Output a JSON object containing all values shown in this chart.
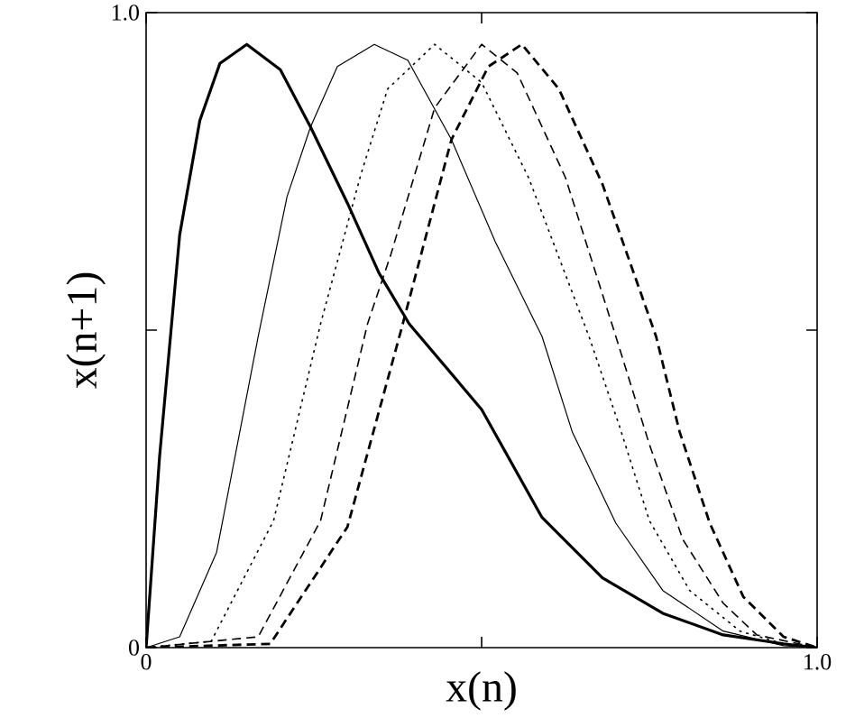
{
  "chart_data": {
    "type": "line",
    "xlabel": "x(n)",
    "ylabel": "x(n+1)",
    "xlim": [
      0,
      1
    ],
    "ylim": [
      0,
      1
    ],
    "xticks": [
      0,
      {
        "value": 0.5,
        "label": null
      },
      {
        "value": 1,
        "label": "1.0"
      }
    ],
    "yticks": [
      0,
      {
        "value": 0.5,
        "label": null
      },
      {
        "value": 1,
        "label": "1.0"
      }
    ],
    "grid": false,
    "marker": "none",
    "series": [
      {
        "color": "#000000",
        "line_style": "solid",
        "x": [
          0,
          0.02,
          0.05,
          0.08,
          0.11,
          0.15,
          0.2,
          0.245,
          0.3,
          0.347,
          0.392,
          0.5,
          0.59,
          0.68,
          0.77,
          0.86,
          0.95,
          1
        ],
        "values": [
          0,
          0.3,
          0.65,
          0.83,
          0.92,
          0.95,
          0.91,
          0.82,
          0.7,
          0.59,
          0.51,
          0.375,
          0.205,
          0.11,
          0.054,
          0.02,
          0.006,
          0
        ]
      },
      {
        "color": "#000000",
        "line_style": "solid",
        "x": [
          0,
          0.05,
          0.105,
          0.167,
          0.21,
          0.245,
          0.285,
          0.34,
          0.39,
          0.455,
          0.52,
          0.59,
          0.635,
          0.7,
          0.77,
          0.86,
          0.95,
          1
        ],
        "values": [
          0,
          0.017,
          0.15,
          0.49,
          0.71,
          0.82,
          0.915,
          0.95,
          0.925,
          0.8,
          0.64,
          0.49,
          0.34,
          0.196,
          0.09,
          0.026,
          0.003,
          0
        ]
      },
      {
        "color": "#000000",
        "line_style": "dotted",
        "x": [
          0,
          0.097,
          0.19,
          0.26,
          0.32,
          0.36,
          0.43,
          0.5,
          0.57,
          0.66,
          0.705,
          0.75,
          0.81,
          0.885,
          0.95,
          1
        ],
        "values": [
          0,
          0.01,
          0.2,
          0.51,
          0.745,
          0.88,
          0.95,
          0.89,
          0.74,
          0.49,
          0.35,
          0.2,
          0.09,
          0.026,
          0.006,
          0
        ]
      },
      {
        "color": "#000000",
        "line_style": "dashed",
        "x": [
          0,
          0.167,
          0.26,
          0.33,
          0.365,
          0.43,
          0.5,
          0.553,
          0.625,
          0.7,
          0.75,
          0.8,
          0.86,
          0.91,
          1
        ],
        "values": [
          0,
          0.017,
          0.2,
          0.51,
          0.62,
          0.85,
          0.95,
          0.905,
          0.74,
          0.49,
          0.32,
          0.17,
          0.07,
          0.02,
          0
        ]
      },
      {
        "color": "#000000",
        "line_style": "dashed",
        "x": [
          0,
          0.185,
          0.3,
          0.38,
          0.455,
          0.51,
          0.56,
          0.615,
          0.68,
          0.76,
          0.795,
          0.84,
          0.89,
          0.95,
          1
        ],
        "values": [
          0,
          0.006,
          0.19,
          0.5,
          0.8,
          0.915,
          0.95,
          0.88,
          0.73,
          0.49,
          0.34,
          0.196,
          0.08,
          0.017,
          0
        ]
      }
    ]
  }
}
